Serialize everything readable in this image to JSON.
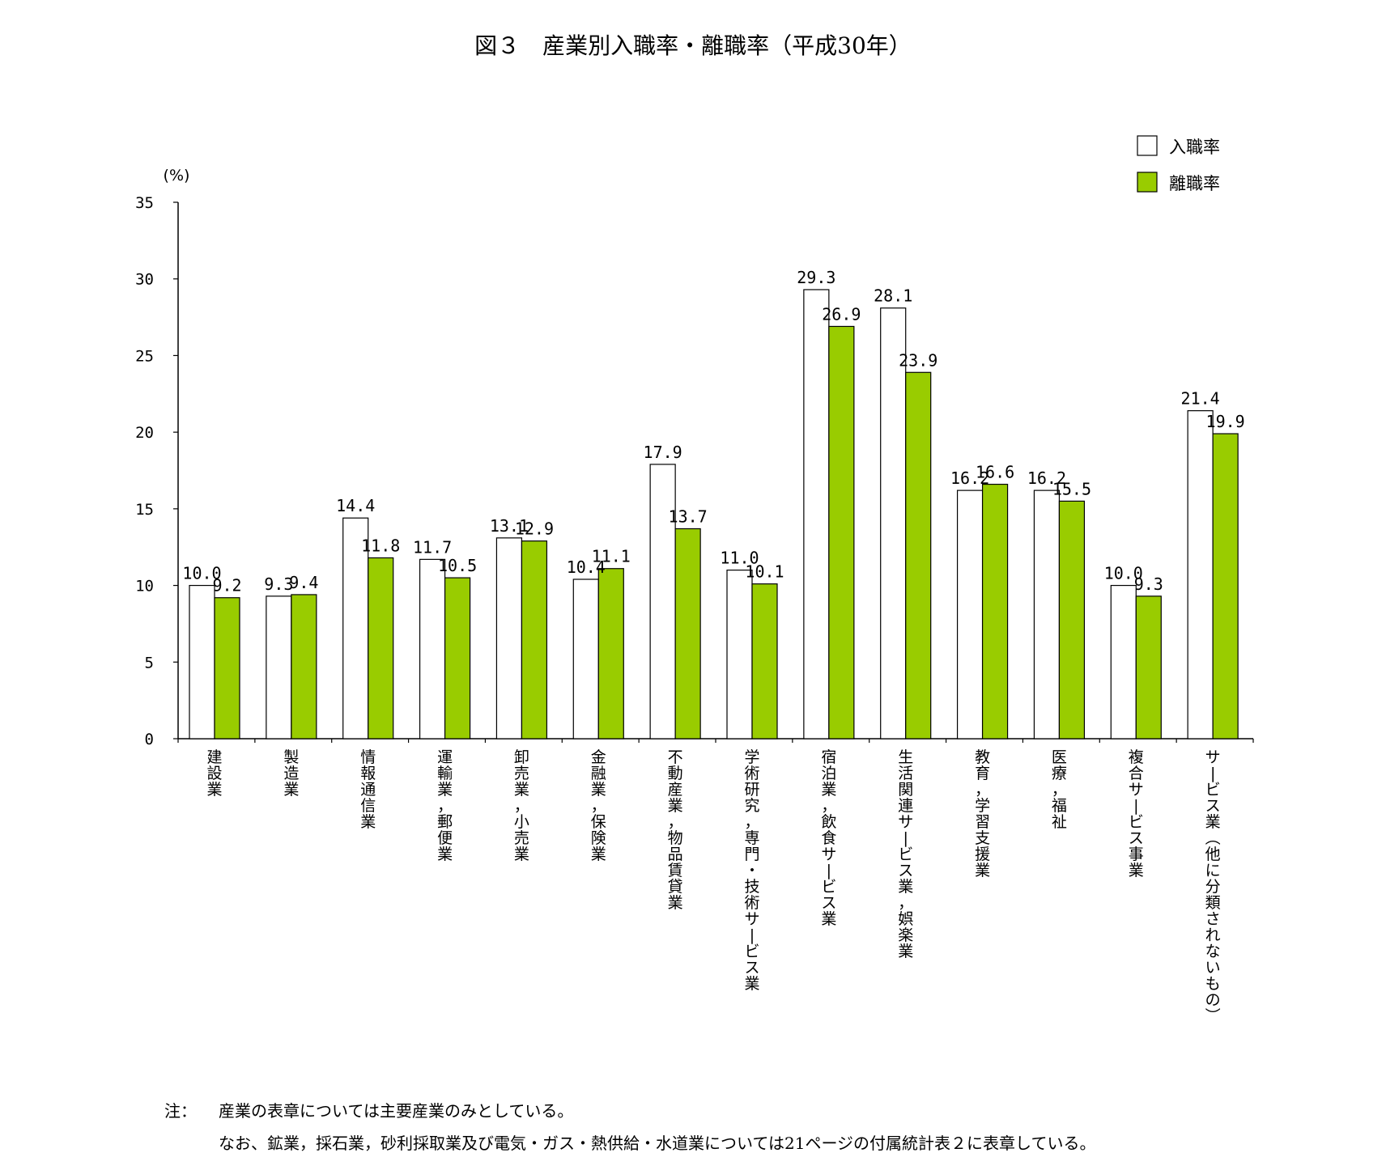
{
  "chart_data": {
    "type": "bar",
    "title": "図３　産業別入職率・離職率（平成30年）",
    "ylabel": "(%)",
    "ylim": [
      0,
      35
    ],
    "yticks": [
      "0",
      "5",
      "10",
      "15",
      "20",
      "25",
      "30",
      "35"
    ],
    "categories": [
      "建設業",
      "製造業",
      "情報通信業",
      "運輸業，郵便業",
      "卸売業，小売業",
      "金融業，保険業",
      "不動産業，物品賃貸業",
      "学術研究，専門・技術サービス業",
      "宿泊業，飲食サービス業",
      "生活関連サービス業，娯楽業",
      "教育，学習支援業",
      "医療，福祉",
      "複合サービス事業",
      "サービス業（他に分類されないもの）"
    ],
    "series": [
      {
        "name": "入職率",
        "color": "#ffffff",
        "values": [
          10.0,
          9.3,
          14.4,
          11.7,
          13.1,
          10.4,
          17.9,
          11.0,
          29.3,
          28.1,
          16.2,
          16.2,
          10.0,
          21.4
        ],
        "labels": [
          "10.0",
          "9.3",
          "14.4",
          "11.7",
          "13.1",
          "10.4",
          "17.9",
          "11.0",
          "29.3",
          "28.1",
          "16.2",
          "16.2",
          "10.0",
          "21.4"
        ]
      },
      {
        "name": "離職率",
        "color": "#99cc00",
        "values": [
          9.2,
          9.4,
          11.8,
          10.5,
          12.9,
          11.1,
          13.7,
          10.1,
          26.9,
          23.9,
          16.6,
          15.5,
          9.3,
          19.9
        ],
        "labels": [
          "9.2",
          "9.4",
          "11.8",
          "10.5",
          "12.9",
          "11.1",
          "13.7",
          "10.1",
          "26.9",
          "23.9",
          "16.6",
          "15.5",
          "9.3",
          "19.9"
        ]
      }
    ],
    "legend": "top-right",
    "grid": false
  },
  "notes": {
    "label": "注：",
    "line1": "産業の表章については主要産業のみとしている。",
    "line2": "なお、鉱業，採石業，砂利採取業及び電気・ガス・熱供給・水道業については21ページの付属統計表２に表章している。"
  }
}
